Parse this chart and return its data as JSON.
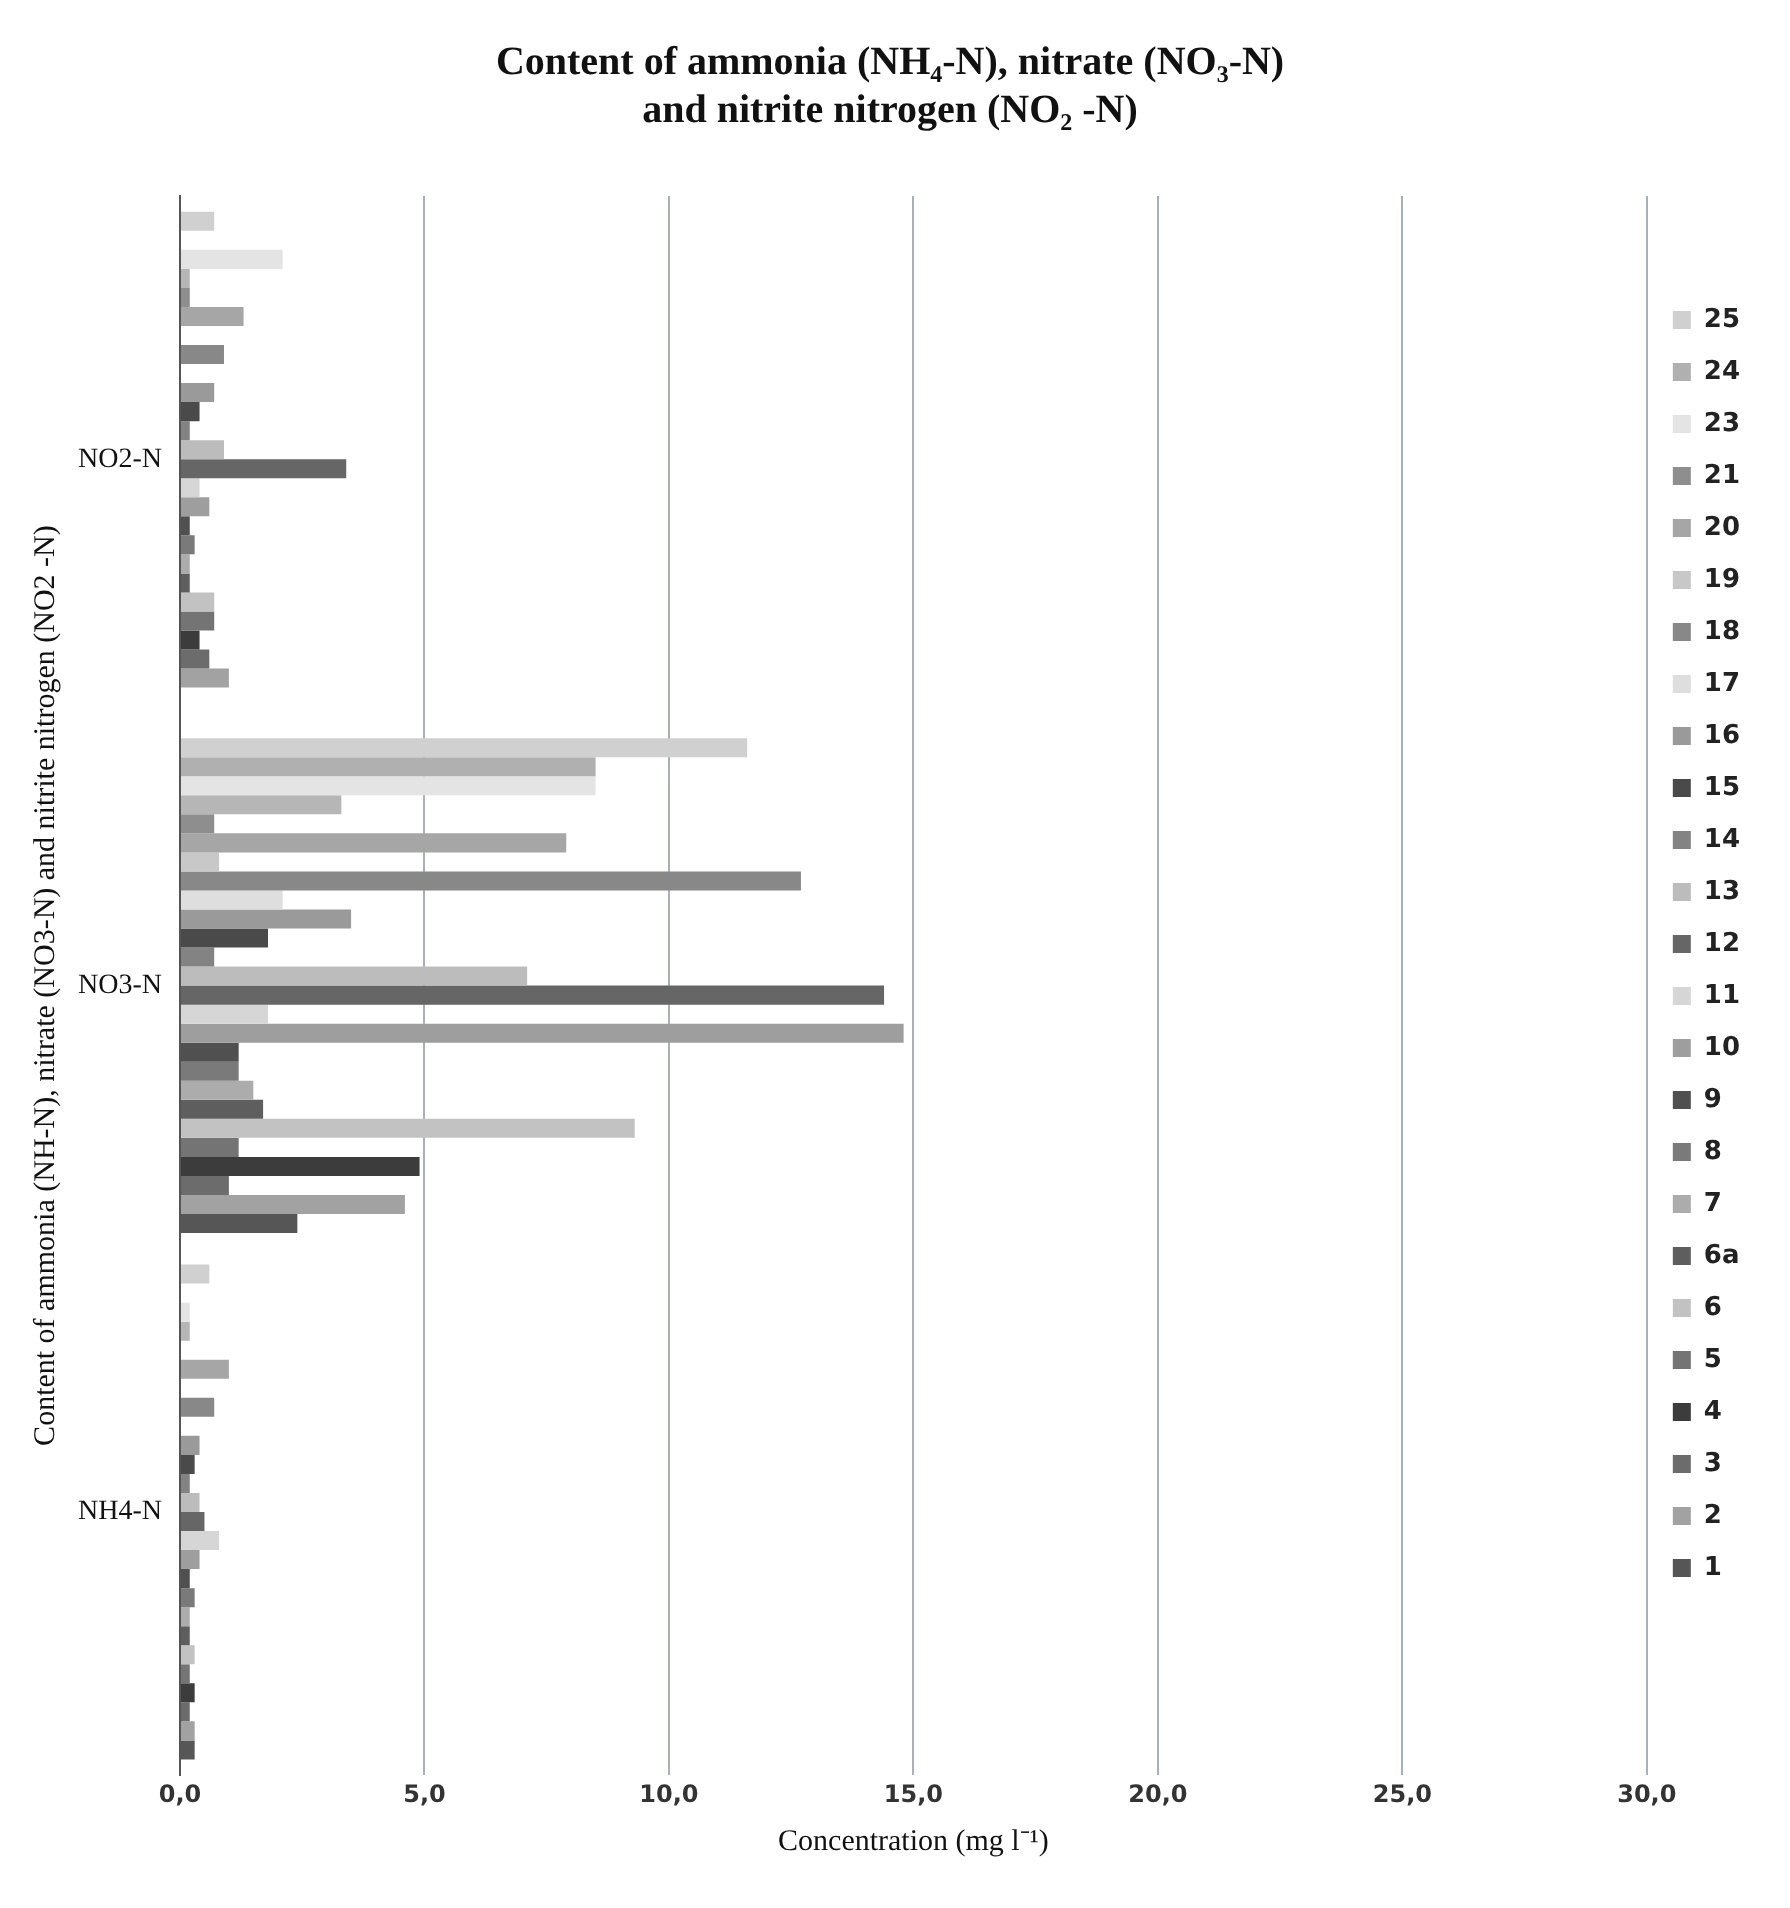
{
  "chart_data": {
    "type": "bar",
    "orientation": "horizontal",
    "title": "Content of ammonia (NH₄-N), nitrate (NO₃-N)\nand nitrite nitrogen (NO₂ -N)",
    "xlabel": "Concentration (mg l⁻¹)",
    "ylabel": "Content of ammonia (NH-N), nitrate (NO3-N) and nitrite nitrogen (NO2 -N)",
    "categories": [
      "NO2-N",
      "NO3-N",
      "NH4-N"
    ],
    "xlim": [
      0,
      30
    ],
    "xticks": [
      {
        "value": 0,
        "label": "0,0"
      },
      {
        "value": 5,
        "label": "5,0"
      },
      {
        "value": 10,
        "label": "10,0"
      },
      {
        "value": 15,
        "label": "15,0"
      },
      {
        "value": 20,
        "label": "20,0"
      },
      {
        "value": 25,
        "label": "25,0"
      },
      {
        "value": 30,
        "label": "30,0"
      }
    ],
    "grid": "x",
    "legend": "right",
    "series": [
      {
        "name": "25",
        "color": "#d0d0d0",
        "values": [
          0.7,
          11.6,
          0.6
        ]
      },
      {
        "name": "24",
        "color": "#b0b0b0",
        "values": [
          null,
          8.5,
          null
        ]
      },
      {
        "name": "23",
        "color": "#e4e4e4",
        "values": [
          2.1,
          8.5,
          0.2
        ]
      },
      {
        "color": "#b6b6b6",
        "values": [
          0.2,
          3.3,
          0.2
        ]
      },
      {
        "name": "21",
        "color": "#8e8e8e",
        "values": [
          0.2,
          0.7,
          null
        ]
      },
      {
        "name": "20",
        "color": "#a6a6a6",
        "values": [
          1.3,
          7.9,
          1.0
        ]
      },
      {
        "name": "19",
        "color": "#c8c8c8",
        "values": [
          null,
          0.8,
          null
        ]
      },
      {
        "name": "18",
        "color": "#888888",
        "values": [
          0.9,
          12.7,
          0.7
        ]
      },
      {
        "name": "17",
        "color": "#dedede",
        "values": [
          null,
          2.1,
          null
        ]
      },
      {
        "name": "16",
        "color": "#9a9a9a",
        "values": [
          0.7,
          3.5,
          0.4
        ]
      },
      {
        "name": "15",
        "color": "#4a4a4a",
        "values": [
          0.4,
          1.8,
          0.3
        ]
      },
      {
        "name": "14",
        "color": "#838383",
        "values": [
          0.2,
          0.7,
          0.2
        ]
      },
      {
        "name": "13",
        "color": "#bcbcbc",
        "values": [
          0.9,
          7.1,
          0.4
        ]
      },
      {
        "name": "12",
        "color": "#666666",
        "values": [
          3.4,
          14.4,
          0.5
        ]
      },
      {
        "name": "11",
        "color": "#d6d6d6",
        "values": [
          0.4,
          1.8,
          0.8
        ]
      },
      {
        "name": "10",
        "color": "#9e9e9e",
        "values": [
          0.6,
          14.8,
          0.4
        ]
      },
      {
        "name": "9",
        "color": "#505050",
        "values": [
          0.2,
          1.2,
          0.2
        ]
      },
      {
        "name": "8",
        "color": "#7a7a7a",
        "values": [
          0.3,
          1.2,
          0.3
        ]
      },
      {
        "name": "7",
        "color": "#acacac",
        "values": [
          0.2,
          1.5,
          0.2
        ]
      },
      {
        "name": "6a",
        "color": "#5e5e5e",
        "values": [
          0.2,
          1.7,
          0.2
        ]
      },
      {
        "name": "6",
        "color": "#c2c2c2",
        "values": [
          0.7,
          9.3,
          0.3
        ]
      },
      {
        "name": "5",
        "color": "#747474",
        "values": [
          0.7,
          1.2,
          0.2
        ]
      },
      {
        "name": "4",
        "color": "#3c3c3c",
        "values": [
          0.4,
          4.9,
          0.3
        ]
      },
      {
        "name": "3",
        "color": "#6c6c6c",
        "values": [
          0.6,
          1.0,
          0.2
        ]
      },
      {
        "name": "2",
        "color": "#a2a2a2",
        "values": [
          1.0,
          4.6,
          0.3
        ]
      },
      {
        "name": "1",
        "color": "#565656",
        "values": [
          null,
          2.4,
          0.3
        ]
      }
    ]
  }
}
